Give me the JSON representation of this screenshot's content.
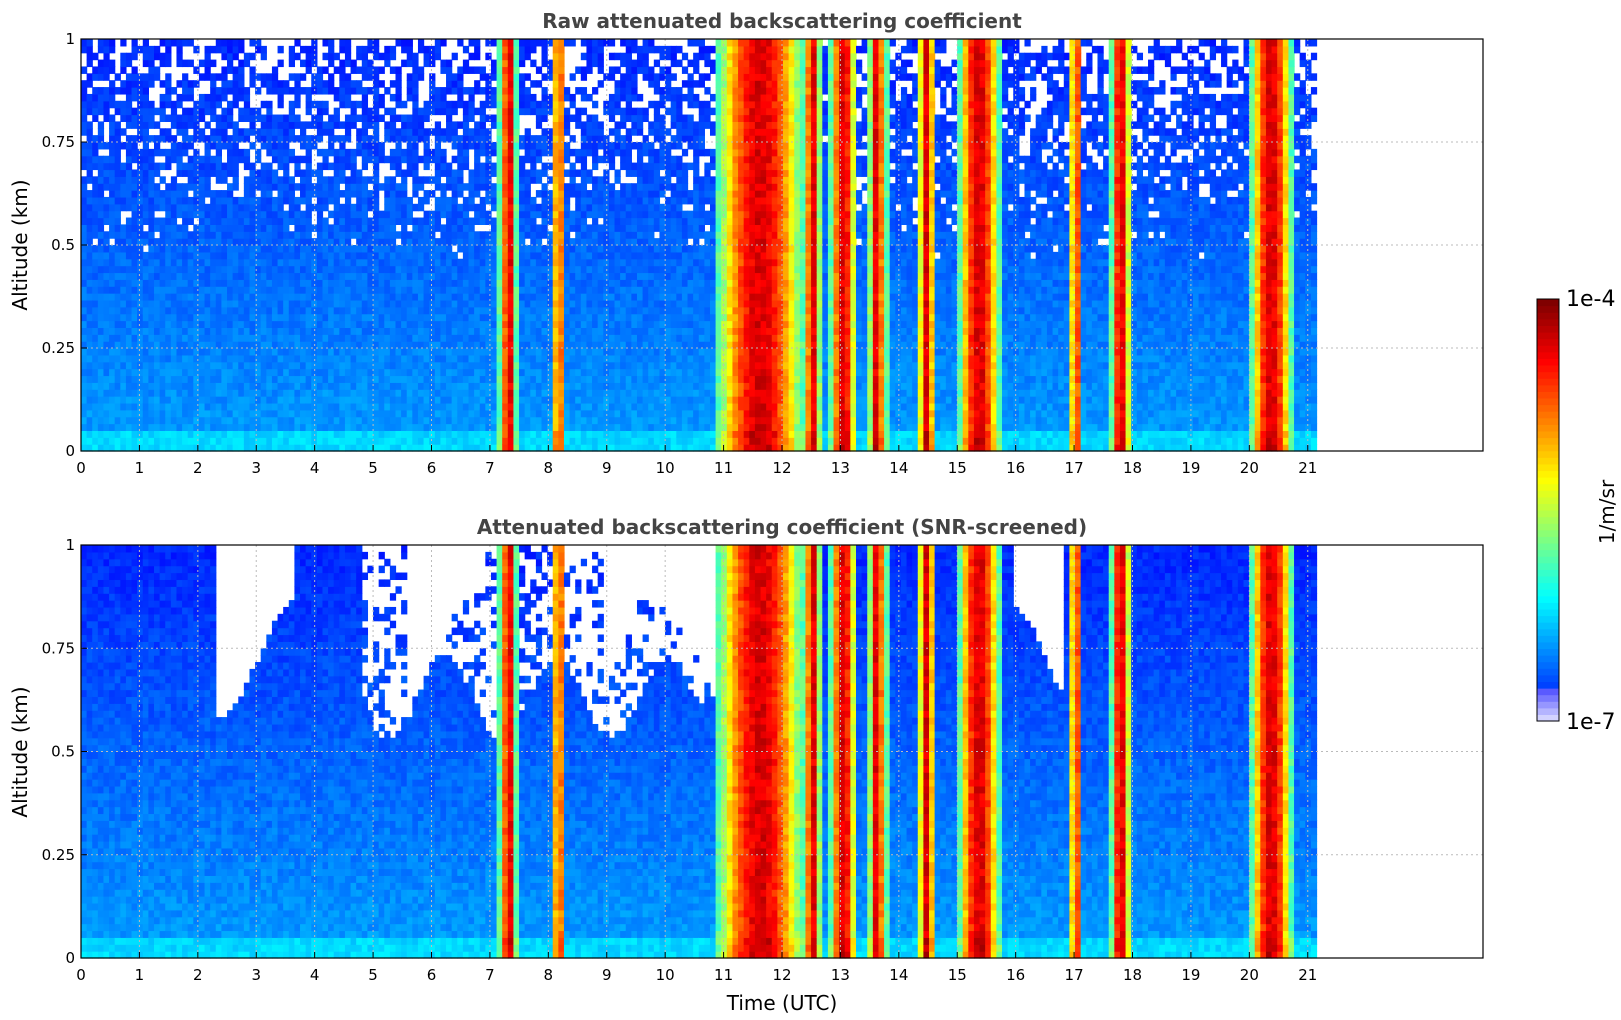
{
  "chart_data": [
    {
      "type": "heatmap",
      "title": "Raw attenuated backscattering coefficient",
      "xlabel": "",
      "ylabel": "Altitude (km)",
      "xlim": [
        0,
        24
      ],
      "ylim": [
        0,
        1
      ],
      "x_ticks": [
        "0",
        "1",
        "2",
        "3",
        "4",
        "5",
        "6",
        "7",
        "8",
        "9",
        "10",
        "11",
        "12",
        "13",
        "14",
        "15",
        "16",
        "17",
        "18",
        "19",
        "20",
        "21"
      ],
      "y_ticks": [
        "0",
        "0.25",
        "0.5",
        "0.75",
        "1"
      ],
      "data_end_time": 21.15,
      "grid": true,
      "colorscale": "jet",
      "high_bands": [
        [
          7.2,
          7.45
        ],
        [
          8.1,
          8.25
        ],
        [
          10.95,
          12.3
        ],
        [
          12.4,
          12.65
        ],
        [
          12.85,
          13.25
        ],
        [
          13.5,
          13.75
        ],
        [
          14.35,
          14.6
        ],
        [
          15.05,
          15.7
        ],
        [
          16.95,
          17.1
        ],
        [
          17.65,
          17.95
        ],
        [
          20.05,
          20.7
        ]
      ],
      "screened": false
    },
    {
      "type": "heatmap",
      "title": "Attenuated backscattering coefficient (SNR-screened)",
      "xlabel": "Time (UTC)",
      "ylabel": "Altitude (km)",
      "xlim": [
        0,
        24
      ],
      "ylim": [
        0,
        1
      ],
      "x_ticks": [
        "0",
        "1",
        "2",
        "3",
        "4",
        "5",
        "6",
        "7",
        "8",
        "9",
        "10",
        "11",
        "12",
        "13",
        "14",
        "15",
        "16",
        "17",
        "18",
        "19",
        "20",
        "21"
      ],
      "y_ticks": [
        "0",
        "0.25",
        "0.5",
        "0.75",
        "1"
      ],
      "data_end_time": 21.15,
      "grid": true,
      "colorscale": "jet",
      "high_bands": [
        [
          7.2,
          7.45
        ],
        [
          8.1,
          8.25
        ],
        [
          10.95,
          12.3
        ],
        [
          12.4,
          12.65
        ],
        [
          12.85,
          13.25
        ],
        [
          13.5,
          13.75
        ],
        [
          14.35,
          14.6
        ],
        [
          15.05,
          15.7
        ],
        [
          16.95,
          17.1
        ],
        [
          17.65,
          17.95
        ],
        [
          20.05,
          20.7
        ]
      ],
      "screened": true
    }
  ],
  "colorbar": {
    "max_label": "1e-4",
    "min_label": "1e-7",
    "unit_label": "1/m/sr",
    "colorscale": "jet"
  }
}
